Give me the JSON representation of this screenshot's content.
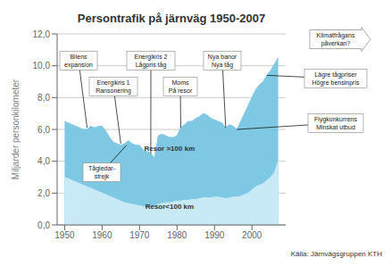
{
  "chart_data": {
    "type": "area",
    "title": "Persontrafik på järnväg 1950-2007",
    "y_label": "Miljarder personkilometer",
    "source": "Källa: Järnvägsgruppen KTH",
    "x": [
      1950,
      1951,
      1952,
      1953,
      1954,
      1955,
      1956,
      1957,
      1958,
      1959,
      1960,
      1961,
      1962,
      1963,
      1964,
      1965,
      1966,
      1967,
      1968,
      1969,
      1970,
      1971,
      1972,
      1973,
      1974,
      1975,
      1976,
      1977,
      1978,
      1979,
      1980,
      1981,
      1982,
      1983,
      1984,
      1985,
      1986,
      1987,
      1988,
      1989,
      1990,
      1991,
      1992,
      1993,
      1994,
      1995,
      1996,
      1997,
      1998,
      1999,
      2000,
      2001,
      2002,
      2003,
      2004,
      2005,
      2006,
      2007
    ],
    "series": [
      {
        "color": "#7ec8e3",
        "values": [
          6.5,
          6.4,
          6.3,
          6.2,
          6.1,
          6.0,
          6.0,
          6.2,
          6.1,
          6.2,
          6.2,
          5.9,
          5.5,
          5.2,
          5.1,
          5.0,
          5.1,
          5.3,
          5.1,
          5.0,
          5.0,
          4.7,
          4.6,
          4.5,
          4.2,
          5.6,
          5.7,
          5.6,
          5.5,
          5.5,
          5.6,
          6.1,
          6.3,
          6.5,
          6.5,
          6.7,
          6.8,
          7.0,
          6.9,
          6.7,
          6.6,
          6.5,
          6.4,
          6.1,
          6.3,
          6.2,
          6.0,
          6.5,
          7.0,
          7.5,
          8.0,
          8.5,
          8.8,
          9.0,
          9.4,
          9.7,
          10.1,
          10.5
        ]
      },
      {
        "color": "#c8eaf7",
        "values": [
          3.0,
          2.9,
          2.8,
          2.7,
          2.6,
          2.5,
          2.4,
          2.3,
          2.2,
          2.1,
          2.0,
          1.9,
          1.8,
          1.7,
          1.6,
          1.5,
          1.4,
          1.35,
          1.3,
          1.25,
          1.2,
          1.15,
          1.1,
          1.1,
          1.15,
          1.3,
          1.35,
          1.4,
          1.4,
          1.45,
          1.5,
          1.5,
          1.55,
          1.55,
          1.6,
          1.6,
          1.65,
          1.7,
          1.7,
          1.7,
          1.75,
          1.75,
          1.7,
          1.65,
          1.7,
          1.75,
          1.75,
          1.8,
          1.9,
          2.0,
          2.2,
          2.4,
          2.5,
          2.6,
          2.8,
          3.0,
          3.3,
          4.0
        ]
      }
    ],
    "xlim": [
      1948,
      2009
    ],
    "xticks": [
      1950,
      1960,
      1970,
      1980,
      1990,
      2000
    ],
    "ylim": [
      0,
      12
    ],
    "yticks": [
      {
        "value": 0,
        "label": "0,0"
      },
      {
        "value": 2,
        "label": "2,0"
      },
      {
        "value": 4,
        "label": "4,0"
      },
      {
        "value": 6,
        "label": "6,0"
      },
      {
        "value": 8,
        "label": "8,0"
      },
      {
        "value": 10,
        "label": "10,0"
      },
      {
        "value": 12,
        "label": "12,0"
      }
    ],
    "grid": true,
    "annotations": [
      {
        "text": "Resor >100 km",
        "x": 1978,
        "y": 4.8
      },
      {
        "text": "Resor<100 km",
        "x": 1978,
        "y": 1.2
      },
      {
        "text": "Bilens\nexpansion",
        "x": 1956,
        "y": 6.1
      },
      {
        "text": "Energikris 1\nRansonering",
        "x": 1965,
        "y": 5.1
      },
      {
        "text": "Energikris 2\nLågpris tåg",
        "x": 1973,
        "y": 4.5
      },
      {
        "text": "Moms\nPå resor",
        "x": 1981,
        "y": 6.1
      },
      {
        "text": "Nya banor\nNya tåg",
        "x": 1993,
        "y": 6.1
      },
      {
        "text": "Tågledar-\nstrejk",
        "x": 1966.5,
        "y": 5.0
      },
      {
        "text": "Flygkonkurrens\nMinskat utbud",
        "x": 1996,
        "y": 6.0
      },
      {
        "text": "Lägre tågpriser\nHögre bensinpris",
        "x": 2004,
        "y": 9.4
      },
      {
        "text": "Klimatfrågans\npåverkan?"
      }
    ]
  }
}
